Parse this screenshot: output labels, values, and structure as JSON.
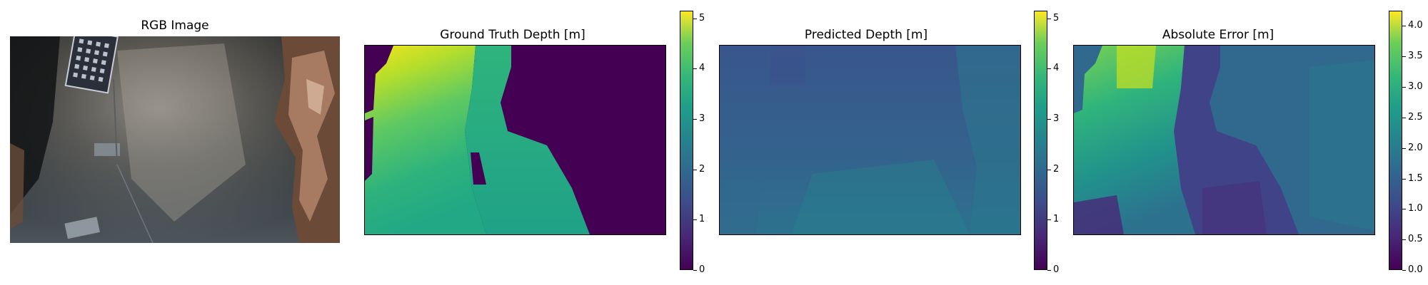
{
  "panels": [
    {
      "title": "RGB Image"
    },
    {
      "title": "Ground Truth Depth [m]"
    },
    {
      "title": "Predicted Depth [m]"
    },
    {
      "title": "Absolute Error [m]"
    }
  ],
  "colorbars": [
    {
      "ticks": [
        "0",
        "1",
        "2",
        "3",
        "4",
        "5"
      ],
      "vmin": 0,
      "vmax": 5.15,
      "cmap": "viridis"
    },
    {
      "ticks": [
        "0",
        "1",
        "2",
        "3",
        "4",
        "5"
      ],
      "vmin": 0,
      "vmax": 5.15,
      "cmap": "viridis"
    },
    {
      "ticks": [
        "0.0",
        "0.5",
        "1.0",
        "1.5",
        "2.0",
        "2.5",
        "3.0",
        "3.5",
        "4.0"
      ],
      "vmin": 0,
      "vmax": 4.25,
      "cmap": "viridis"
    }
  ],
  "chart_data": {
    "type": "heatmap",
    "title": "",
    "panels": [
      "RGB Image",
      "Ground Truth Depth [m]",
      "Predicted Depth [m]",
      "Absolute Error [m]"
    ],
    "colormap": "viridis",
    "depth_range": [
      0,
      5.15
    ],
    "error_range": [
      0,
      4.25
    ]
  }
}
